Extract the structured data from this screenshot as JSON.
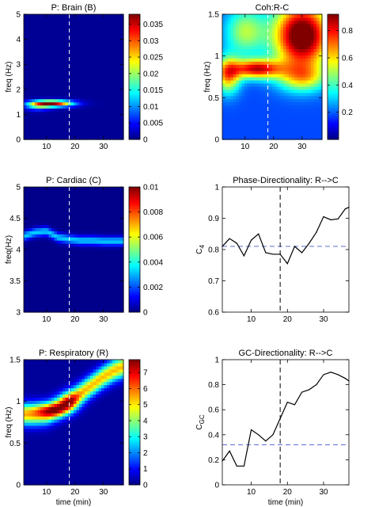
{
  "chart_data": [
    {
      "type": "heatmap",
      "title": "P: Brain (B)",
      "ylabel": "freq (Hz)",
      "xlabel": "",
      "xlim": [
        2,
        37
      ],
      "ylim": [
        0,
        5
      ],
      "xticks": [
        10,
        20,
        30
      ],
      "yticks": [
        0,
        1,
        2,
        3,
        4,
        5
      ],
      "colorbar": {
        "cmin": 0,
        "cmax": 0.038,
        "ticks": [
          "0",
          "0.005",
          "0.01",
          "0.015",
          "0.02",
          "0.025",
          "0.03",
          "0.035"
        ],
        "tickvals": [
          0,
          0.005,
          0.01,
          0.015,
          0.02,
          0.025,
          0.03,
          0.035
        ]
      },
      "vline_x": 18,
      "blobs": [
        {
          "x": 12,
          "y": 1.45,
          "sx": 5.0,
          "sy": 0.09,
          "v": 0.036
        },
        {
          "x": 7,
          "y": 1.35,
          "sx": 3.0,
          "sy": 0.12,
          "v": 0.012
        }
      ],
      "background": 0.0008
    },
    {
      "type": "heatmap",
      "title": "Coh:R-C",
      "ylabel": "freq (Hz)",
      "xlabel": "",
      "xlim": [
        2,
        37
      ],
      "ylim": [
        0,
        1.5
      ],
      "xticks": [
        10,
        20,
        30
      ],
      "yticks": [
        0,
        0.5,
        1,
        1.5
      ],
      "colorbar": {
        "cmin": 0,
        "cmax": 0.92,
        "ticks": [
          "0.2",
          "0.4",
          "0.6",
          "0.8"
        ],
        "tickvals": [
          0.2,
          0.4,
          0.6,
          0.8
        ]
      },
      "vline_x": 18,
      "blobs": [
        {
          "x": 30,
          "y": 1.25,
          "sx": 7.0,
          "sy": 0.28,
          "v": 0.85
        },
        {
          "x": 14,
          "y": 0.85,
          "sx": 6.0,
          "sy": 0.08,
          "v": 0.65
        },
        {
          "x": 4,
          "y": 0.78,
          "sx": 3.0,
          "sy": 0.15,
          "v": 0.5
        },
        {
          "x": 30,
          "y": 0.75,
          "sx": 6.0,
          "sy": 0.12,
          "v": 0.35
        },
        {
          "x": 10,
          "y": 1.3,
          "sx": 5.0,
          "sy": 0.2,
          "v": 0.32
        }
      ],
      "background": 0.18
    },
    {
      "type": "heatmap",
      "title": "P: Cardiac (C)",
      "ylabel": "freq(Hz)",
      "xlabel": "",
      "xlim": [
        2,
        37
      ],
      "ylim": [
        3,
        5
      ],
      "xticks": [
        10,
        20,
        30
      ],
      "yticks": [
        3,
        3.5,
        4,
        4.5,
        5
      ],
      "colorbar": {
        "cmin": 0,
        "cmax": 0.01,
        "ticks": [
          "0",
          "0.002",
          "0.004",
          "0.006",
          "0.008",
          "0.01"
        ],
        "tickvals": [
          0,
          0.002,
          0.004,
          0.006,
          0.008,
          0.01
        ]
      },
      "vline_x": 18,
      "ridge": {
        "x": [
          2,
          6,
          10,
          14,
          18,
          22,
          26,
          30,
          34,
          37
        ],
        "y": [
          4.22,
          4.28,
          4.3,
          4.2,
          4.17,
          4.15,
          4.15,
          4.14,
          4.14,
          4.14
        ],
        "sy": 0.05,
        "v": 0.0032
      },
      "background": 0.0001
    },
    {
      "type": "line",
      "title": "Phase-Directionality: R-->C",
      "ylabel": "C4",
      "xlabel": "",
      "xlim": [
        2,
        37
      ],
      "ylim": [
        0.6,
        1.0
      ],
      "xticks": [
        10,
        20,
        30
      ],
      "yticks": [
        0.6,
        0.7,
        0.8,
        0.9,
        1.0
      ],
      "series": [
        {
          "x": [
            2,
            4,
            6,
            8,
            10,
            12,
            14,
            16,
            18,
            20,
            22,
            24,
            26,
            28,
            30,
            32,
            34,
            36,
            37
          ],
          "values": [
            0.81,
            0.835,
            0.82,
            0.78,
            0.83,
            0.85,
            0.79,
            0.785,
            0.785,
            0.755,
            0.81,
            0.79,
            0.82,
            0.855,
            0.905,
            0.895,
            0.898,
            0.93,
            0.935
          ]
        }
      ],
      "hline_y": 0.81,
      "vline_x": 18
    },
    {
      "type": "heatmap",
      "title": "P: Respiratory (R)",
      "ylabel": "freq (Hz)",
      "xlabel": "time (min)",
      "xlim": [
        2,
        37
      ],
      "ylim": [
        0,
        1.5
      ],
      "xticks": [
        10,
        20,
        30
      ],
      "yticks": [
        0,
        0.5,
        1,
        1.5
      ],
      "colorbar": {
        "cmin": 0,
        "cmax": 7.8,
        "ticks": [
          "0",
          "1",
          "2",
          "3",
          "4",
          "5",
          "6",
          "7"
        ],
        "tickvals": [
          0,
          1,
          2,
          3,
          4,
          5,
          6,
          7
        ]
      },
      "vline_x": 18,
      "ridge": {
        "x": [
          2,
          6,
          10,
          14,
          18,
          22,
          26,
          30,
          34,
          37
        ],
        "y": [
          0.85,
          0.85,
          0.86,
          0.92,
          1.0,
          1.1,
          1.2,
          1.3,
          1.38,
          1.42
        ],
        "sy": 0.09,
        "v": 5.2
      },
      "blobs": [
        {
          "x": 12,
          "y": 0.9,
          "sx": 4.0,
          "sy": 0.06,
          "v": 2.8
        },
        {
          "x": 18,
          "y": 1.0,
          "sx": 2.5,
          "sy": 0.08,
          "v": 2.5
        }
      ],
      "background": 0.2
    },
    {
      "type": "line",
      "title": "GC-Directionality: R-->C",
      "ylabel": "CGC",
      "xlabel": "time (min)",
      "xlim": [
        2,
        37
      ],
      "ylim": [
        0,
        1.0
      ],
      "xticks": [
        10,
        20,
        30
      ],
      "yticks": [
        0,
        0.2,
        0.4,
        0.6,
        0.8,
        1.0
      ],
      "series": [
        {
          "x": [
            2,
            4,
            6,
            8,
            10,
            12,
            14,
            16,
            18,
            20,
            22,
            24,
            26,
            28,
            30,
            32,
            34,
            36,
            37
          ],
          "values": [
            0.19,
            0.27,
            0.15,
            0.15,
            0.44,
            0.4,
            0.35,
            0.4,
            0.53,
            0.66,
            0.64,
            0.74,
            0.76,
            0.8,
            0.88,
            0.9,
            0.88,
            0.85,
            0.83
          ]
        }
      ],
      "hline_y": 0.32,
      "vline_x": 18
    }
  ]
}
